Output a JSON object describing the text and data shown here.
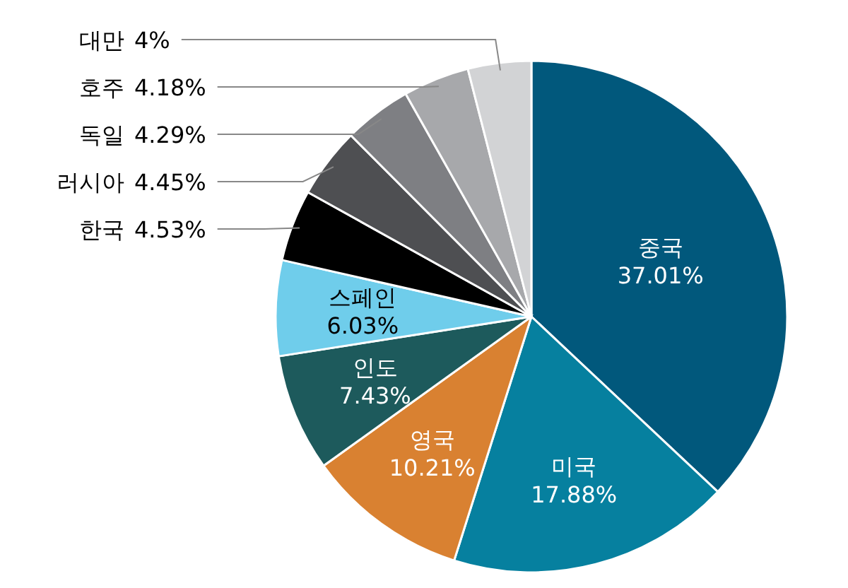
{
  "chart_data": {
    "type": "pie",
    "categories": [
      "중국",
      "미국",
      "영국",
      "인도",
      "스페인",
      "한국",
      "러시아",
      "독일",
      "호주",
      "대만"
    ],
    "values": [
      37.01,
      17.88,
      10.21,
      7.43,
      6.03,
      4.53,
      4.45,
      4.29,
      4.18,
      4
    ],
    "value_labels": [
      "37.01%",
      "17.88%",
      "10.21%",
      "7.43%",
      "6.03%",
      "4.53%",
      "4.45%",
      "4.29%",
      "4.18%",
      "4%"
    ],
    "colors": [
      "#01587c",
      "#06809f",
      "#d98131",
      "#1d5a5c",
      "#6fcdeb",
      "#000000",
      "#4e4f52",
      "#7e7f83",
      "#a7a8ab",
      "#d2d3d5"
    ]
  }
}
